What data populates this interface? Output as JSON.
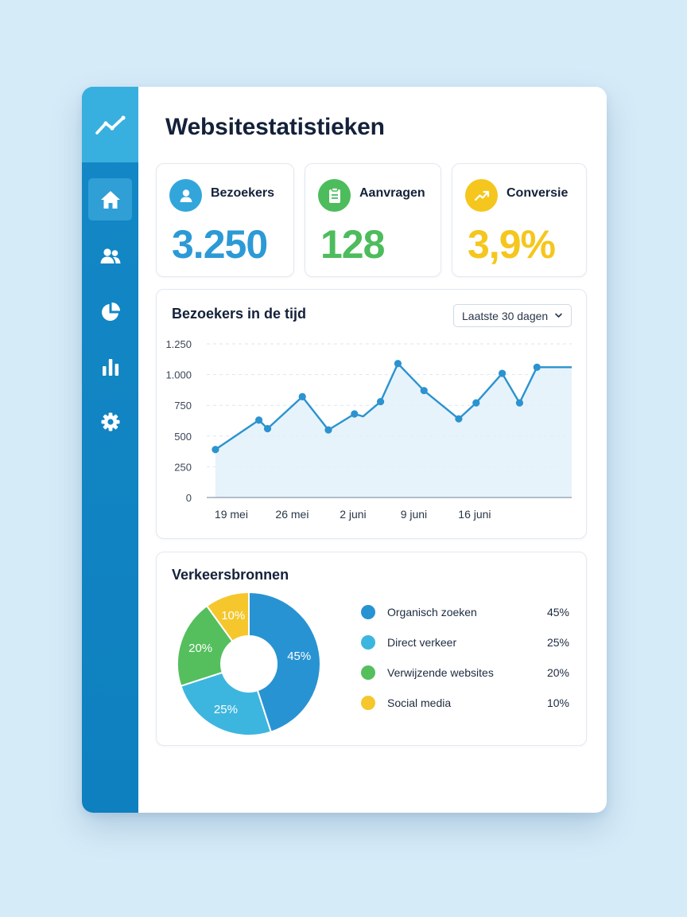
{
  "page": {
    "title": "Websitestatistieken"
  },
  "sidebar": {
    "logo_icon": "trend-line-icon",
    "items": [
      {
        "icon": "home-icon",
        "active": true
      },
      {
        "icon": "users-icon",
        "active": false
      },
      {
        "icon": "pie-chart-icon",
        "active": false
      },
      {
        "icon": "bar-chart-icon",
        "active": false
      },
      {
        "icon": "gear-icon",
        "active": false
      }
    ]
  },
  "kpis": [
    {
      "label": "Bezoekers",
      "value": "3.250",
      "icon": "user-icon",
      "color": "#2b9ad6"
    },
    {
      "label": "Aanvragen",
      "value": "128",
      "icon": "clipboard-icon",
      "color": "#4cbc5c"
    },
    {
      "label": "Conversie",
      "value": "3,9%",
      "icon": "trend-up-icon",
      "color": "#f5c61d"
    }
  ],
  "visitors_chart": {
    "title": "Bezoekers in de tijd",
    "range_selected": "Laatste 30 dagen",
    "chart_data": {
      "type": "area",
      "title": "Bezoekers in de tijd",
      "x_tick_labels": [
        "19 mei",
        "26 mei",
        "2 juni",
        "9 juni",
        "16 juni"
      ],
      "y_tick_labels": [
        "1.250",
        "1.000",
        "750",
        "500",
        "250",
        "0"
      ],
      "y_ticks": [
        1250,
        1000,
        750,
        500,
        250,
        0
      ],
      "ylim": [
        0,
        1250
      ],
      "grid": true,
      "line_color": "#2b93cf",
      "fill_color": "#e3f1fa",
      "series": [
        {
          "x": [
            "2024-05-19",
            "2024-05-24",
            "2024-05-25",
            "2024-05-29",
            "2024-06-01",
            "2024-06-04",
            "2024-06-05",
            "2024-06-07",
            "2024-06-09",
            "2024-06-12",
            "2024-06-16",
            "2024-06-18",
            "2024-06-21",
            "2024-06-23",
            "2024-06-25",
            "2024-06-29"
          ],
          "values": [
            390,
            630,
            560,
            820,
            550,
            680,
            660,
            780,
            1090,
            870,
            640,
            770,
            1010,
            770,
            1060,
            1060
          ]
        }
      ]
    }
  },
  "traffic_sources": {
    "title": "Verkeersbronnen",
    "chart_data": {
      "type": "pie",
      "title": "Verkeersbronnen",
      "categories": [
        "Organisch zoeken",
        "Direct verkeer",
        "Verwijzende websites",
        "Social media"
      ],
      "values": [
        45,
        25,
        20,
        10
      ],
      "labels": [
        "45%",
        "25%",
        "20%",
        "10%"
      ],
      "colors": [
        "#2893d3",
        "#3db6df",
        "#55bf5d",
        "#f5c72c"
      ],
      "legend_position": "right"
    }
  }
}
